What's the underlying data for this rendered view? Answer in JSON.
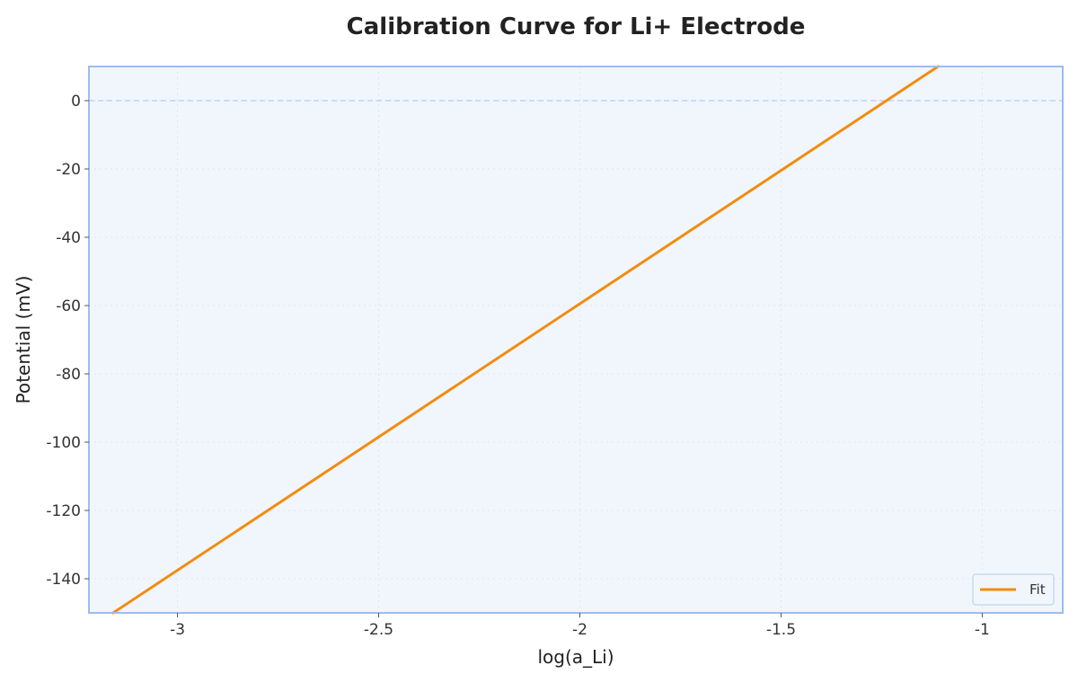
{
  "chart_data": {
    "type": "line",
    "title": "Calibration Curve for Li+ Electrode",
    "xlabel": "log(a_Li)",
    "ylabel": "Potential (mV)",
    "xlim": [
      -3.22,
      -0.8
    ],
    "ylim": [
      -150,
      10
    ],
    "xticks": [
      -3,
      -2.5,
      -2,
      -1.5,
      -1
    ],
    "xtick_labels": [
      "-3",
      "-2.5",
      "-2",
      "-1.5",
      "-1"
    ],
    "yticks": [
      0,
      -20,
      -40,
      -60,
      -80,
      -100,
      -120,
      -140
    ],
    "ytick_labels": [
      "0",
      "-20",
      "-40",
      "-60",
      "-80",
      "-100",
      "-120",
      "-140"
    ],
    "series": [
      {
        "name": "Fit",
        "color": "#f28c0f",
        "x": [
          -3.16,
          -1.11
        ],
        "y": [
          -150,
          10
        ]
      }
    ],
    "reference_line": {
      "y": 0,
      "style": "dashed",
      "color": "#bcd3f5"
    },
    "grid": true,
    "legend_position": "lower-right",
    "colors": {
      "plot_background": "#f1f6fd",
      "plot_border": "#9dbdf0",
      "grid": "#dde5f0"
    }
  }
}
